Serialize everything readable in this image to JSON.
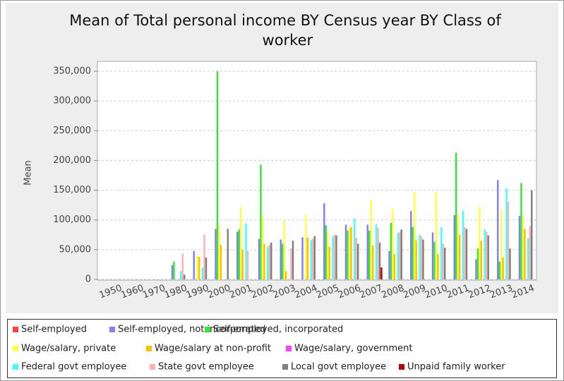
{
  "chart_data": {
    "type": "bar",
    "title": "Mean of Total personal income BY Census year BY Class of worker",
    "y_label": "Mean",
    "categories": [
      "1950",
      "1960",
      "1970",
      "1980",
      "1990",
      "2000",
      "2001",
      "2002",
      "2003",
      "2004",
      "2005",
      "2006",
      "2007",
      "2008",
      "2009",
      "2010",
      "2011",
      "2012",
      "2013",
      "2014"
    ],
    "ylim": [
      0,
      350000
    ],
    "yticks": [
      0,
      {
        "value": 50000,
        "label": "50,000"
      },
      {
        "value": 100000,
        "label": "100,000"
      },
      {
        "value": 150000,
        "label": "150,000"
      },
      {
        "value": 200000,
        "label": "200,000"
      },
      {
        "value": 250000,
        "label": "250,000"
      },
      {
        "value": 300000,
        "label": "300,000"
      },
      {
        "value": 350000,
        "label": "350,000"
      }
    ],
    "grid": true,
    "series": [
      {
        "name": "Self-employed",
        "color": "#ff4040",
        "values": [
          null,
          null,
          null,
          null,
          null,
          null,
          null,
          null,
          null,
          null,
          null,
          null,
          null,
          null,
          null,
          null,
          null,
          null,
          null,
          null
        ]
      },
      {
        "name": "Self-employed, not incorporated",
        "color": "#8080ff",
        "values": [
          null,
          null,
          null,
          24000,
          48000,
          85000,
          80000,
          68000,
          67000,
          71000,
          128000,
          92000,
          92000,
          48000,
          115000,
          79000,
          108000,
          34000,
          167000,
          107000
        ]
      },
      {
        "name": "Self-employed, incorporated",
        "color": "#33e833",
        "values": [
          null,
          null,
          null,
          30000,
          null,
          350000,
          84000,
          193000,
          60000,
          null,
          91000,
          82000,
          82000,
          95000,
          88000,
          63000,
          213000,
          52000,
          30000,
          162000
        ]
      },
      {
        "name": "Wage/salary, private",
        "color": "#ffff40",
        "values": [
          null,
          null,
          null,
          null,
          40000,
          90000,
          122000,
          105000,
          99000,
          108000,
          80000,
          87000,
          133000,
          118000,
          147000,
          147000,
          110000,
          122000,
          117000,
          107000
        ]
      },
      {
        "name": "Wage/salary at non-profit",
        "color": "#ffc000",
        "values": [
          null,
          null,
          null,
          null,
          38000,
          58000,
          50000,
          60000,
          14000,
          70000,
          55000,
          88000,
          57000,
          43000,
          66000,
          43000,
          75000,
          65000,
          37000,
          85000
        ]
      },
      {
        "name": "Wage/salary, government",
        "color": "#ff40ff",
        "values": [
          null,
          null,
          null,
          null,
          null,
          null,
          null,
          null,
          null,
          null,
          null,
          null,
          null,
          null,
          null,
          null,
          null,
          null,
          null,
          null
        ]
      },
      {
        "name": "Federal govt employee",
        "color": "#40ffff",
        "values": [
          null,
          null,
          null,
          14000,
          20000,
          null,
          94000,
          55000,
          null,
          66000,
          72000,
          102000,
          93000,
          78000,
          75000,
          88000,
          115000,
          84000,
          153000,
          69000
        ]
      },
      {
        "name": "State govt employee",
        "color": "#ffb0b0",
        "values": [
          null,
          null,
          null,
          43000,
          75000,
          null,
          48000,
          58000,
          52000,
          68000,
          75000,
          70000,
          87000,
          80000,
          72000,
          60000,
          88000,
          80000,
          131000,
          90000
        ]
      },
      {
        "name": "Local govt employee",
        "color": "#808080",
        "values": [
          null,
          null,
          null,
          8000,
          37000,
          85000,
          null,
          62000,
          65000,
          73000,
          74000,
          60000,
          62000,
          84000,
          67000,
          53000,
          85000,
          74000,
          52000,
          150000
        ]
      },
      {
        "name": "Unpaid family worker",
        "color": "#c00000",
        "values": [
          null,
          null,
          null,
          null,
          null,
          null,
          null,
          null,
          null,
          null,
          null,
          null,
          20000,
          null,
          null,
          null,
          null,
          null,
          null,
          null
        ]
      }
    ]
  }
}
